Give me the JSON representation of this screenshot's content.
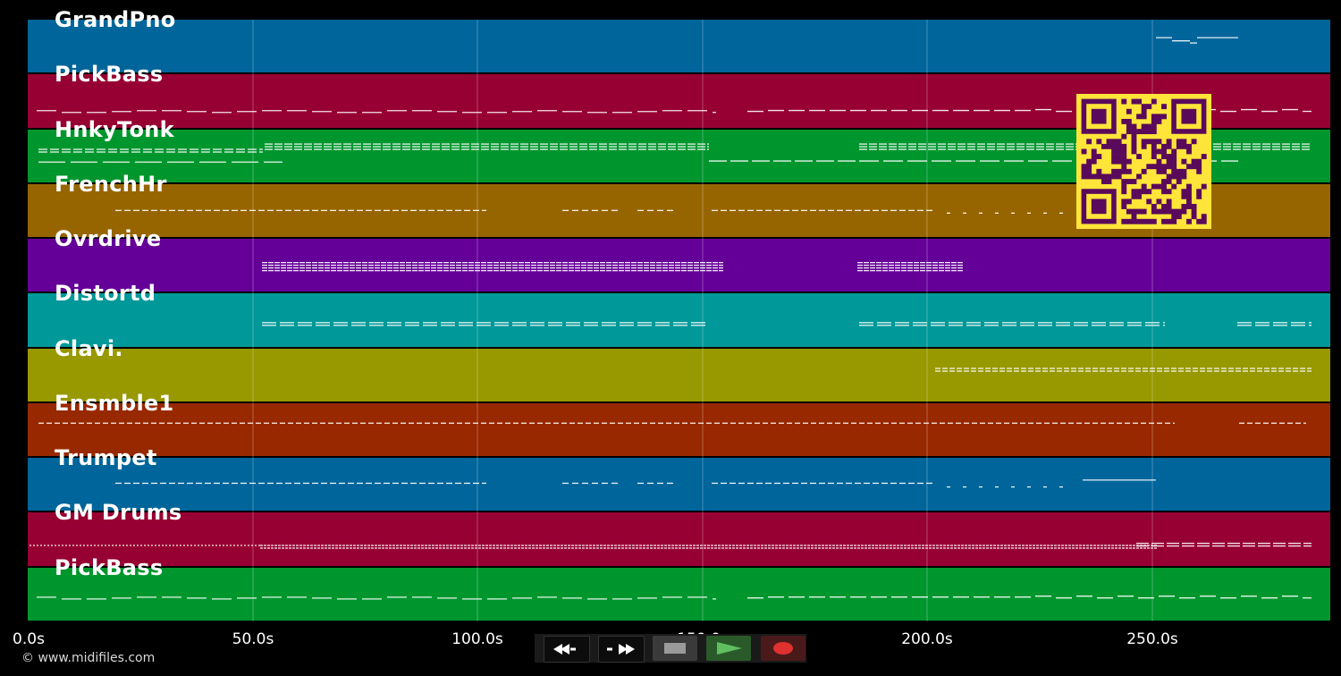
{
  "tracks": [
    {
      "name": "GrandPno",
      "color": "#00659a"
    },
    {
      "name": "PickBass",
      "color": "#970032"
    },
    {
      "name": "HnkyTonk",
      "color": "#00962e"
    },
    {
      "name": "FrenchHr",
      "color": "#976500"
    },
    {
      "name": "Ovrdrive",
      "color": "#640098"
    },
    {
      "name": "Distortd",
      "color": "#009898"
    },
    {
      "name": "Clavi.",
      "color": "#989800"
    },
    {
      "name": "Ensmble1",
      "color": "#982800"
    },
    {
      "name": "Trumpet",
      "color": "#00659a"
    },
    {
      "name": "GM Drums",
      "color": "#970032"
    },
    {
      "name": "PickBass",
      "color": "#00962e"
    }
  ],
  "timeline": {
    "ticks": [
      "0.0s",
      "50.0s",
      "100.0s",
      "150.0s",
      "200.0s",
      "250.0s"
    ]
  },
  "footer": {
    "copyright": "© www.midifiles.com"
  },
  "transport": {
    "rewind_icon": "rewind-icon",
    "fast_forward_icon": "fast-forward-icon",
    "stop_icon": "stop-icon",
    "play_icon": "play-icon",
    "record_icon": "record-icon",
    "play_color": "#5fbf5f",
    "record_color": "#e03030",
    "stop_color": "#9a9a9a"
  },
  "qr_code": {
    "colors": [
      "#ffe53a",
      "#5a0a5a"
    ]
  }
}
